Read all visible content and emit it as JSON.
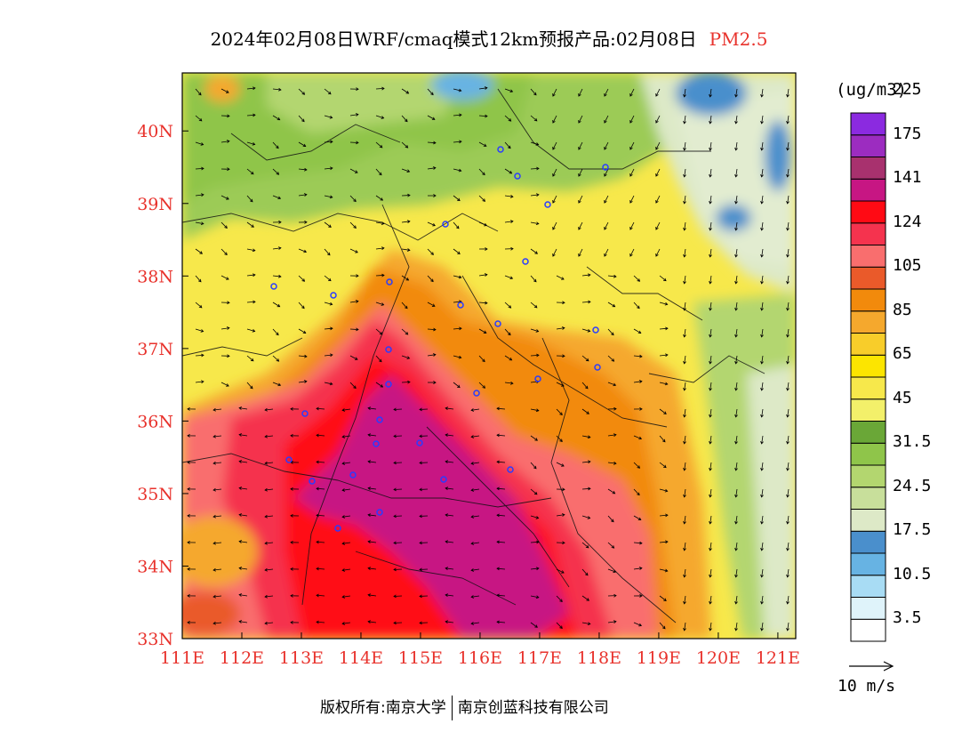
{
  "header": {
    "title": "2024年02月08日WRF/cmaq模式12km预报产品:02月08日",
    "species": "PM2.5"
  },
  "map": {
    "lon_ticks": [
      "111E",
      "112E",
      "113E",
      "114E",
      "115E",
      "116E",
      "117E",
      "118E",
      "119E",
      "120E",
      "121E"
    ],
    "lat_ticks": [
      "33N",
      "34N",
      "35N",
      "36N",
      "37N",
      "38N",
      "39N",
      "40N"
    ],
    "lon_range": [
      111,
      121.3
    ],
    "lat_range": [
      33,
      40.8
    ],
    "axis_label_color": "#e8322c"
  },
  "colorbar": {
    "unit": "(ug/m3)",
    "colors": [
      "#ffffff",
      "#dff3fa",
      "#a8dcf4",
      "#67b3e3",
      "#4a8fcc",
      "#dde9c7",
      "#c8df9b",
      "#b3d66f",
      "#8fc54a",
      "#6aa737",
      "#f3f06a",
      "#f7e84b",
      "#fce500",
      "#f8cd2a",
      "#f5a82d",
      "#f28a0c",
      "#ea5a2a",
      "#f96e6e",
      "#f5334e",
      "#ff0a14",
      "#c71683",
      "#a8316e",
      "#9c2cc0",
      "#8b2ae0"
    ],
    "labels": [
      "3.5",
      "10.5",
      "17.5",
      "24.5",
      "31.5",
      "45",
      "65",
      "85",
      "105",
      "124",
      "141",
      "175",
      "225"
    ],
    "wind_ref": "10 m/s"
  },
  "footer": {
    "copyright_left": "版权所有:南京大学",
    "copyright_right": "南京创蓝科技有限公司"
  }
}
